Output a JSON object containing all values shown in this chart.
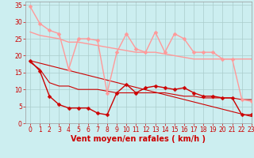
{
  "xlabel": "Vent moyen/en rafales ( km/h )",
  "bg_color": "#cceef0",
  "grid_color": "#aacccc",
  "xlim": [
    -0.5,
    23
  ],
  "ylim": [
    0,
    36
  ],
  "yticks": [
    0,
    5,
    10,
    15,
    20,
    25,
    30,
    35
  ],
  "xticks": [
    0,
    1,
    2,
    3,
    4,
    5,
    6,
    7,
    8,
    9,
    10,
    11,
    12,
    13,
    14,
    15,
    16,
    17,
    18,
    19,
    20,
    21,
    22,
    23
  ],
  "lines": [
    {
      "x": [
        0,
        1,
        2,
        3,
        4,
        5,
        6,
        7,
        8,
        9,
        10,
        11,
        12,
        13,
        14,
        15,
        16,
        17,
        18,
        19,
        20,
        21,
        22,
        23
      ],
      "y": [
        34.5,
        29.5,
        27.5,
        26.5,
        16,
        25,
        25,
        24.5,
        9,
        21,
        26.5,
        22,
        21,
        27,
        21,
        26.5,
        25,
        21,
        21,
        21,
        19,
        19,
        7,
        6.5
      ],
      "color": "#ff9999",
      "lw": 1.0,
      "marker": "D",
      "ms": 2.5,
      "zorder": 3
    },
    {
      "x": [
        0,
        1,
        2,
        3,
        4,
        5,
        6,
        7,
        8,
        9,
        10,
        11,
        12,
        13,
        14,
        15,
        16,
        17,
        18,
        19,
        20,
        21,
        22,
        23
      ],
      "y": [
        27,
        26,
        25.5,
        25,
        24,
        24,
        23.5,
        23,
        22.5,
        22,
        21.5,
        21,
        21,
        21,
        20.5,
        20,
        19.5,
        19,
        19,
        19,
        19,
        19,
        19,
        19
      ],
      "color": "#ff9999",
      "lw": 1.0,
      "marker": null,
      "ms": 0,
      "zorder": 2
    },
    {
      "x": [
        0,
        1,
        2,
        3,
        4,
        5,
        6,
        7,
        8,
        9,
        10,
        11,
        12,
        13,
        14,
        15,
        16,
        17,
        18,
        19,
        20,
        21,
        22,
        23
      ],
      "y": [
        18.5,
        15.5,
        8,
        5.5,
        4.5,
        4.5,
        4.5,
        3,
        2.5,
        9,
        11.5,
        9,
        10.5,
        11,
        10.5,
        10,
        10.5,
        9,
        8,
        8,
        7.5,
        7.5,
        2.5,
        2.5
      ],
      "color": "#cc0000",
      "lw": 1.0,
      "marker": "D",
      "ms": 2.5,
      "zorder": 4
    },
    {
      "x": [
        0,
        23
      ],
      "y": [
        18.5,
        2.0
      ],
      "color": "#cc0000",
      "lw": 0.8,
      "marker": null,
      "ms": 0,
      "zorder": 2
    },
    {
      "x": [
        0,
        1,
        2,
        3,
        4,
        5,
        6,
        7,
        8,
        9,
        10,
        11,
        12,
        13,
        14,
        15,
        16,
        17,
        18,
        19,
        20,
        21,
        22,
        23
      ],
      "y": [
        18,
        16,
        12,
        11,
        11,
        10,
        10,
        10,
        9.5,
        9,
        9,
        9,
        9,
        9,
        9,
        8.5,
        8,
        8,
        7.5,
        7.5,
        7.5,
        7.5,
        7,
        7
      ],
      "color": "#cc0000",
      "lw": 0.8,
      "marker": null,
      "ms": 0,
      "zorder": 2
    }
  ],
  "tick_color": "#cc0000",
  "label_color": "#cc0000",
  "tick_fontsize": 5.5,
  "xlabel_fontsize": 7
}
